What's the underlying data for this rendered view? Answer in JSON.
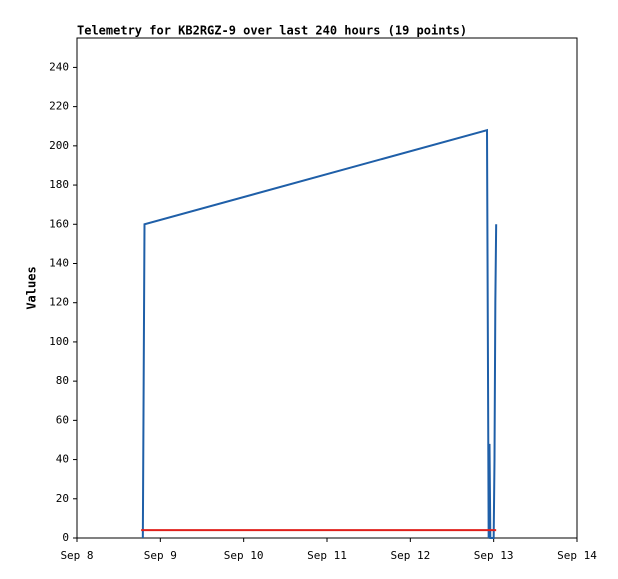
{
  "chart_data": {
    "type": "line",
    "title": "Telemetry for KB2RGZ-9 over last 240 hours (19 points)",
    "y_label": "Values",
    "xlim": [
      0,
      6
    ],
    "xticks": [
      {
        "value": 0,
        "label": "Sep 8"
      },
      {
        "value": 1,
        "label": "Sep 9"
      },
      {
        "value": 2,
        "label": "Sep 10"
      },
      {
        "value": 3,
        "label": "Sep 11"
      },
      {
        "value": 4,
        "label": "Sep 12"
      },
      {
        "value": 5,
        "label": "Sep 13"
      },
      {
        "value": 6,
        "label": "Sep 14"
      }
    ],
    "ylim": [
      0,
      255
    ],
    "yticks": [
      0,
      20,
      40,
      60,
      80,
      100,
      120,
      140,
      160,
      180,
      200,
      220,
      240
    ],
    "series": [
      {
        "color": "#1f5fa8",
        "x": [
          0.79,
          0.8,
          0.81,
          4.92,
          4.93,
          4.94,
          4.95,
          4.96,
          5.0,
          5.01,
          5.02,
          5.03
        ],
        "values": [
          0,
          80,
          160,
          208,
          105,
          0,
          48,
          0,
          0,
          40,
          120,
          160
        ]
      },
      {
        "color": "#e0201b",
        "x": [
          0.77,
          5.03
        ],
        "values": [
          4,
          4
        ]
      }
    ]
  }
}
